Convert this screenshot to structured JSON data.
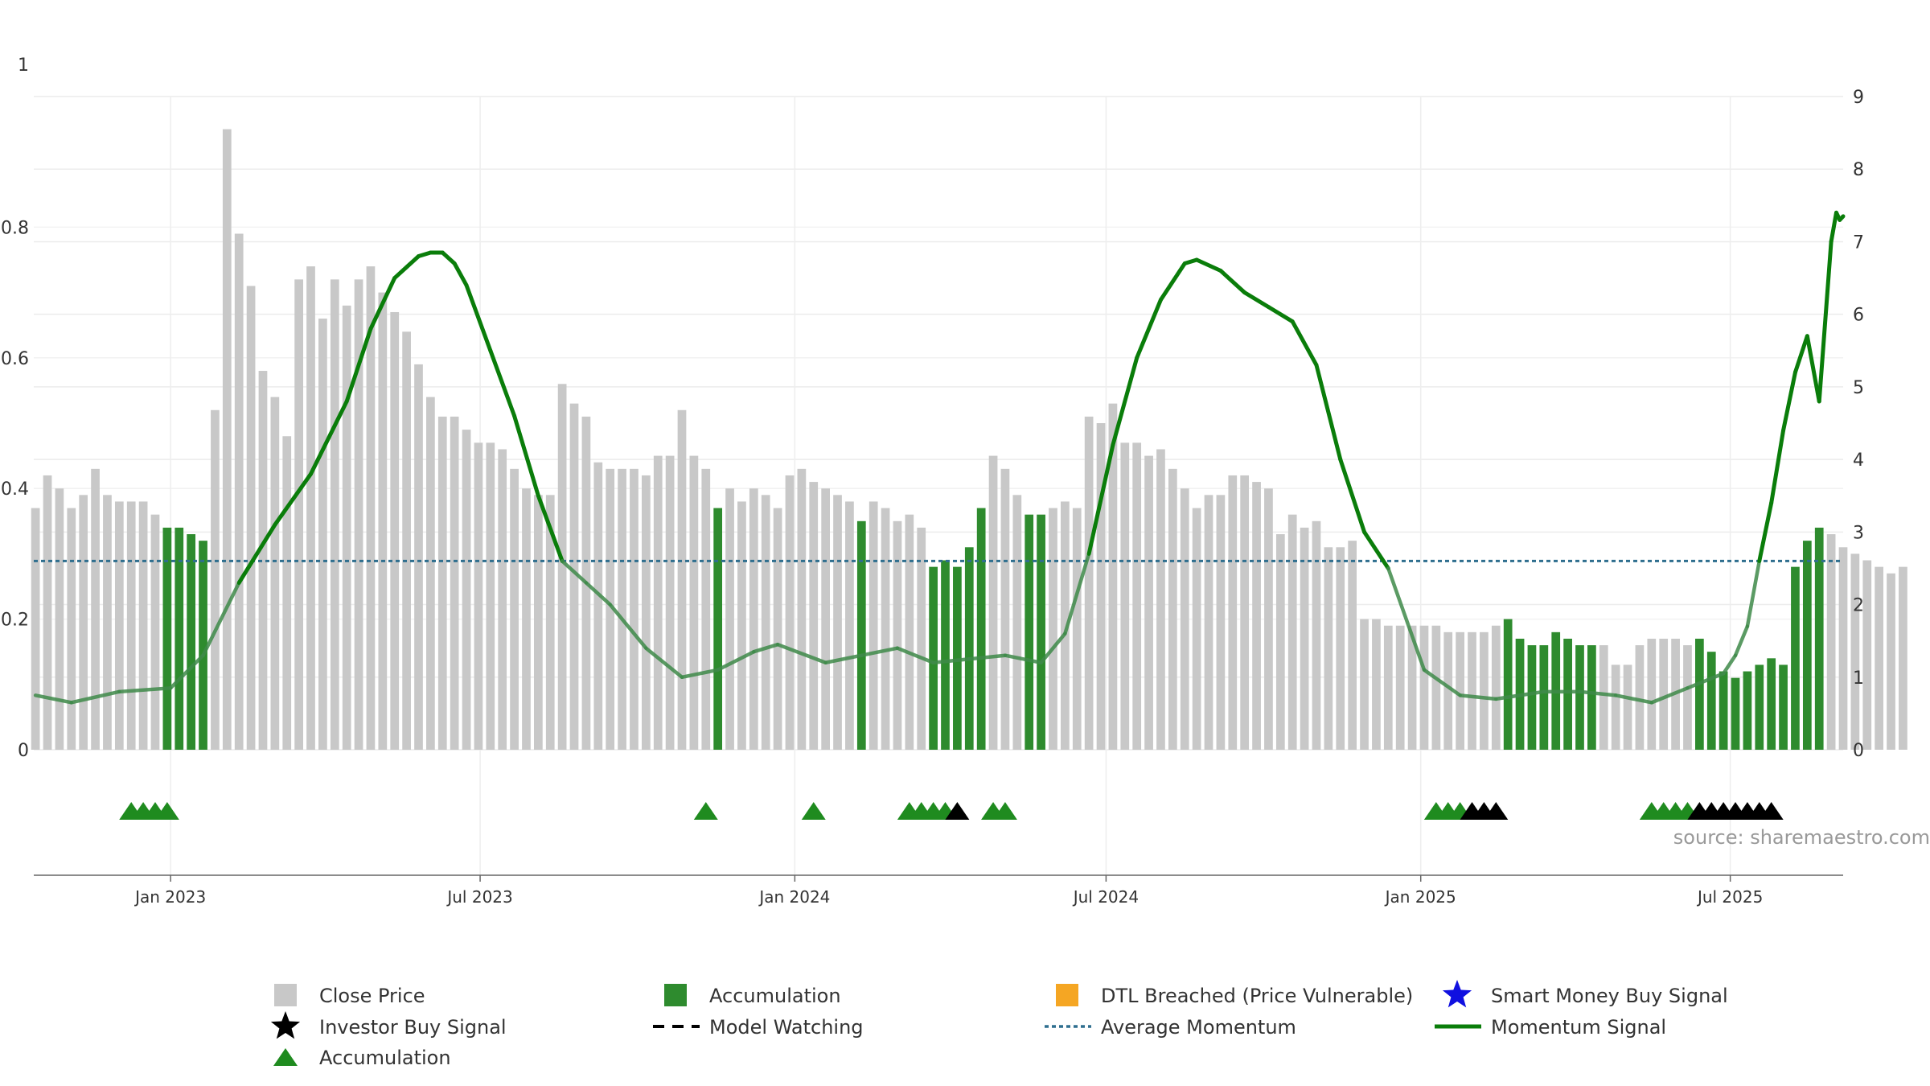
{
  "chart_data": {
    "type": "bar",
    "source_text": "source: sharemaestro.com",
    "colors": {
      "close_price": "#c8c8c8",
      "accumulation": "#2e8b2e",
      "momentum": "#0a7d0a",
      "momentum_faded": "#3f8a4a",
      "average_momentum": "#2f6f8f",
      "investor_buy": "#000000",
      "dtl_breached": "#f5a623",
      "smart_money": "#1010e0"
    },
    "left_axis": {
      "ylim": [
        0,
        1
      ],
      "ticks": [
        "0",
        "0.2",
        "0.4",
        "0.6",
        "0.8",
        "1"
      ]
    },
    "right_axis": {
      "ylim": [
        0,
        9
      ],
      "ticks": [
        "0",
        "1",
        "2",
        "3",
        "4",
        "5",
        "6",
        "7",
        "8",
        "9"
      ]
    },
    "x_axis": {
      "range": [
        "2022-10-13",
        "2025-09-05"
      ],
      "ticks": [
        {
          "date": "2023-01-01",
          "label": "Jan 2023"
        },
        {
          "date": "2023-07-01",
          "label": "Jul 2023"
        },
        {
          "date": "2024-01-01",
          "label": "Jan 2024"
        },
        {
          "date": "2024-07-01",
          "label": "Jul 2024"
        },
        {
          "date": "2025-01-01",
          "label": "Jan 2025"
        },
        {
          "date": "2025-07-01",
          "label": "Jul 2025"
        }
      ]
    },
    "bars_start_date": "2022-10-14",
    "bar_interval_days": 7,
    "close_price": [
      0.37,
      0.42,
      0.4,
      0.37,
      0.39,
      0.43,
      0.39,
      0.38,
      0.38,
      0.38,
      0.36,
      0.34,
      0.34,
      0.33,
      0.32,
      0.52,
      0.95,
      0.79,
      0.71,
      0.58,
      0.54,
      0.48,
      0.72,
      0.74,
      0.66,
      0.72,
      0.68,
      0.72,
      0.74,
      0.7,
      0.67,
      0.64,
      0.59,
      0.54,
      0.51,
      0.51,
      0.49,
      0.47,
      0.47,
      0.46,
      0.43,
      0.4,
      0.39,
      0.39,
      0.56,
      0.53,
      0.51,
      0.44,
      0.43,
      0.43,
      0.43,
      0.42,
      0.45,
      0.45,
      0.52,
      0.45,
      0.43,
      0.37,
      0.4,
      0.38,
      0.4,
      0.39,
      0.37,
      0.42,
      0.43,
      0.41,
      0.4,
      0.39,
      0.38,
      0.35,
      0.38,
      0.37,
      0.35,
      0.36,
      0.34,
      0.28,
      0.29,
      0.28,
      0.31,
      0.37,
      0.45,
      0.43,
      0.39,
      0.36,
      0.36,
      0.37,
      0.38,
      0.37,
      0.51,
      0.5,
      0.53,
      0.47,
      0.47,
      0.45,
      0.46,
      0.43,
      0.4,
      0.37,
      0.39,
      0.39,
      0.42,
      0.42,
      0.41,
      0.4,
      0.33,
      0.36,
      0.34,
      0.35,
      0.31,
      0.31,
      0.32,
      0.2,
      0.2,
      0.19,
      0.19,
      0.19,
      0.19,
      0.19,
      0.18,
      0.18,
      0.18,
      0.18,
      0.19,
      0.2,
      0.17,
      0.16,
      0.16,
      0.18,
      0.17,
      0.16,
      0.16,
      0.16,
      0.13,
      0.13,
      0.16,
      0.17,
      0.17,
      0.17,
      0.16,
      0.17,
      0.15,
      0.12,
      0.11,
      0.12,
      0.13,
      0.14,
      0.13,
      0.28,
      0.32,
      0.34,
      0.33,
      0.31,
      0.3,
      0.29,
      0.28,
      0.27,
      0.28
    ],
    "accumulation_bar_indices": [
      11,
      12,
      13,
      14,
      57,
      69,
      75,
      76,
      77,
      78,
      79,
      83,
      84,
      123,
      124,
      125,
      126,
      127,
      128,
      129,
      130,
      139,
      140,
      141,
      142,
      143,
      144,
      145,
      146,
      147,
      148,
      149
    ],
    "momentum_signal": [
      [
        "2022-10-14",
        0.75
      ],
      [
        "2022-11-04",
        0.65
      ],
      [
        "2022-12-02",
        0.8
      ],
      [
        "2023-01-01",
        0.85
      ],
      [
        "2023-01-20",
        1.3
      ],
      [
        "2023-02-10",
        2.3
      ],
      [
        "2023-03-03",
        3.1
      ],
      [
        "2023-03-24",
        3.8
      ],
      [
        "2023-04-14",
        4.8
      ],
      [
        "2023-04-28",
        5.8
      ],
      [
        "2023-05-12",
        6.5
      ],
      [
        "2023-05-26",
        6.8
      ],
      [
        "2023-06-02",
        6.85
      ],
      [
        "2023-06-09",
        6.85
      ],
      [
        "2023-06-16",
        6.7
      ],
      [
        "2023-06-23",
        6.4
      ],
      [
        "2023-07-07",
        5.5
      ],
      [
        "2023-07-21",
        4.6
      ],
      [
        "2023-08-04",
        3.5
      ],
      [
        "2023-08-18",
        2.6
      ],
      [
        "2023-09-01",
        2.3
      ],
      [
        "2023-09-15",
        2.0
      ],
      [
        "2023-10-06",
        1.4
      ],
      [
        "2023-10-27",
        1.0
      ],
      [
        "2023-11-17",
        1.1
      ],
      [
        "2023-12-08",
        1.35
      ],
      [
        "2023-12-22",
        1.45
      ],
      [
        "2024-01-19",
        1.2
      ],
      [
        "2024-02-09",
        1.3
      ],
      [
        "2024-03-01",
        1.4
      ],
      [
        "2024-03-22",
        1.2
      ],
      [
        "2024-04-12",
        1.25
      ],
      [
        "2024-05-03",
        1.3
      ],
      [
        "2024-05-24",
        1.2
      ],
      [
        "2024-06-07",
        1.6
      ],
      [
        "2024-06-21",
        2.7
      ],
      [
        "2024-07-05",
        4.2
      ],
      [
        "2024-07-19",
        5.4
      ],
      [
        "2024-08-02",
        6.2
      ],
      [
        "2024-08-16",
        6.7
      ],
      [
        "2024-08-23",
        6.75
      ],
      [
        "2024-09-06",
        6.6
      ],
      [
        "2024-09-20",
        6.3
      ],
      [
        "2024-10-04",
        6.1
      ],
      [
        "2024-10-18",
        5.9
      ],
      [
        "2024-11-01",
        5.3
      ],
      [
        "2024-11-15",
        4.0
      ],
      [
        "2024-11-29",
        3.0
      ],
      [
        "2024-12-13",
        2.5
      ],
      [
        "2025-01-03",
        1.1
      ],
      [
        "2025-01-24",
        0.75
      ],
      [
        "2025-02-14",
        0.7
      ],
      [
        "2025-03-14",
        0.8
      ],
      [
        "2025-04-04",
        0.8
      ],
      [
        "2025-04-25",
        0.75
      ],
      [
        "2025-05-16",
        0.65
      ],
      [
        "2025-06-06",
        0.85
      ],
      [
        "2025-06-27",
        1.05
      ],
      [
        "2025-07-04",
        1.3
      ],
      [
        "2025-07-11",
        1.7
      ],
      [
        "2025-07-18",
        2.6
      ],
      [
        "2025-07-25",
        3.4
      ],
      [
        "2025-08-01",
        4.4
      ],
      [
        "2025-08-08",
        5.2
      ],
      [
        "2025-08-15",
        5.7
      ],
      [
        "2025-08-22",
        4.8
      ],
      [
        "2025-08-29",
        7.0
      ],
      [
        "2025-09-01",
        7.4
      ],
      [
        "2025-09-03",
        7.3
      ],
      [
        "2025-09-05",
        7.35
      ]
    ],
    "average_momentum": 2.6,
    "accumulation_markers": [
      "2022-12-09",
      "2022-12-16",
      "2022-12-23",
      "2022-12-30",
      "2023-11-10",
      "2024-01-12",
      "2024-03-08",
      "2024-03-15",
      "2024-03-22",
      "2024-03-29",
      "2024-04-26",
      "2024-05-03",
      "2025-01-10",
      "2025-01-17",
      "2025-01-24",
      "2025-05-16",
      "2025-05-23",
      "2025-05-30",
      "2025-06-06"
    ],
    "investor_buy_markers": [
      "2024-04-05",
      "2025-01-31",
      "2025-02-07",
      "2025-02-14",
      "2025-06-13",
      "2025-06-20",
      "2025-06-27",
      "2025-07-04",
      "2025-07-11",
      "2025-07-18",
      "2025-07-25"
    ],
    "legend": [
      {
        "label": "Close Price",
        "symbol": "square",
        "color": "#c8c8c8"
      },
      {
        "label": "Accumulation",
        "symbol": "square",
        "color": "#2e8b2e"
      },
      {
        "label": "DTL Breached (Price Vulnerable)",
        "symbol": "square",
        "color": "#f5a623"
      },
      {
        "label": "Smart Money Buy Signal",
        "symbol": "star",
        "color": "#1010e0"
      },
      {
        "label": "Investor Buy Signal",
        "symbol": "star",
        "color": "#000000"
      },
      {
        "label": "Model Watching",
        "symbol": "dash",
        "color": "#000000"
      },
      {
        "label": "Average Momentum",
        "symbol": "dot",
        "color": "#2f6f8f"
      },
      {
        "label": "Momentum Signal",
        "symbol": "line",
        "color": "#0a7d0a"
      },
      {
        "label": "Accumulation",
        "symbol": "triangle",
        "color": "#1f8b1f"
      }
    ]
  }
}
